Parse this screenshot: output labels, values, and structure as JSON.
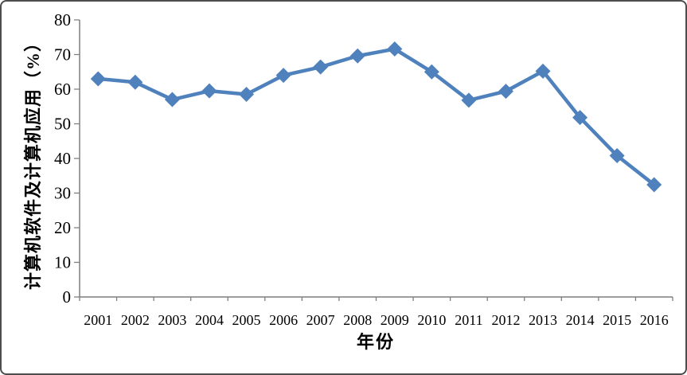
{
  "chart_data": {
    "type": "line",
    "title": "",
    "xlabel": "年份",
    "ylabel": "计算机软件及计算机应用（%）",
    "categories": [
      "2001",
      "2002",
      "2003",
      "2004",
      "2005",
      "2006",
      "2007",
      "2008",
      "2009",
      "2010",
      "2011",
      "2012",
      "2013",
      "2014",
      "2015",
      "2016"
    ],
    "values": [
      63.0,
      62.0,
      57.0,
      59.5,
      58.5,
      64.0,
      66.4,
      69.6,
      71.6,
      65.0,
      56.8,
      59.4,
      65.2,
      51.8,
      40.8,
      32.4
    ],
    "ylim": [
      0,
      80
    ],
    "yticks": [
      0,
      10,
      20,
      30,
      40,
      50,
      60,
      70,
      80
    ],
    "grid": false,
    "legend": "none",
    "marker": "diamond",
    "colors": {
      "line": "#4F81BD",
      "marker": "#4F81BD",
      "axis": "#7f7f7f",
      "text": "#000000",
      "frame_border": "#4d4d4d",
      "background": "#ffffff"
    }
  }
}
